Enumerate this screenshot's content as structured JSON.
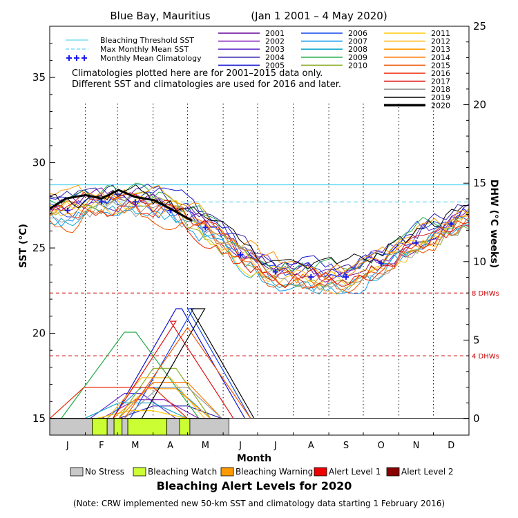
{
  "chart_data": {
    "type": "line",
    "title": "Blue Bay, Mauritius",
    "date_range": "(Jan 1 2001 – 4 May 2020)",
    "xlabel": "Month",
    "ylabel_left": "SST (°C)",
    "ylabel_right": "DHW (°C weeks)",
    "months": [
      "J",
      "F",
      "M",
      "A",
      "M",
      "J",
      "J",
      "A",
      "S",
      "O",
      "N",
      "D"
    ],
    "sst_axis": {
      "min": 15,
      "max": 38,
      "ticks": [
        15,
        20,
        25,
        30,
        35
      ]
    },
    "dhw_axis": {
      "min": 0,
      "max": 25,
      "ticks": [
        0,
        5,
        10,
        15,
        20,
        25
      ]
    },
    "thresholds": {
      "bleaching_threshold_sst": 28.7,
      "max_monthly_mean_sst": 27.7,
      "dhw_lines": [
        {
          "value": 8,
          "label": "8 DHWs"
        },
        {
          "value": 4,
          "label": "4 DHWs"
        }
      ]
    },
    "legend_lines": [
      {
        "label": "Bleaching Threshold SST",
        "color": "#33ccee"
      },
      {
        "label": "Max Monthly Mean SST",
        "color": "#33ccee"
      },
      {
        "label": "Monthly Mean Climatology",
        "color": "#1a1aee"
      }
    ],
    "notes": [
      "Climatologies plotted here are for 2001–2015 data only.",
      "Different SST and climatologies are used for 2016 and later."
    ],
    "series": [
      {
        "name": "2001",
        "color": "#660099"
      },
      {
        "name": "2002",
        "color": "#8822bb"
      },
      {
        "name": "2003",
        "color": "#6633cc"
      },
      {
        "name": "2004",
        "color": "#3322aa"
      },
      {
        "name": "2005",
        "color": "#1111cc"
      },
      {
        "name": "2006",
        "color": "#1144ee"
      },
      {
        "name": "2007",
        "color": "#1199ee"
      },
      {
        "name": "2008",
        "color": "#11aacc"
      },
      {
        "name": "2009",
        "color": "#22aa44"
      },
      {
        "name": "2010",
        "color": "#88aa22"
      },
      {
        "name": "2011",
        "color": "#ffcc00"
      },
      {
        "name": "2012",
        "color": "#ffbb22"
      },
      {
        "name": "2013",
        "color": "#ff9900"
      },
      {
        "name": "2014",
        "color": "#ff7700"
      },
      {
        "name": "2015",
        "color": "#ee5500"
      },
      {
        "name": "2016",
        "color": "#ee2200"
      },
      {
        "name": "2017",
        "color": "#dd1111"
      },
      {
        "name": "2018",
        "color": "#999999"
      },
      {
        "name": "2019",
        "color": "#000000"
      },
      {
        "name": "2020",
        "color": "#000000"
      }
    ],
    "climatology_sst": [
      27.2,
      27.7,
      27.7,
      27.2,
      26.2,
      24.6,
      23.6,
      23.3,
      23.3,
      24.1,
      25.3,
      26.4
    ],
    "year_2020_sst": {
      "x": [
        "2020-01-01",
        "2020-01-15",
        "2020-02-01",
        "2020-02-15",
        "2020-03-01",
        "2020-03-15",
        "2020-04-01",
        "2020-04-15",
        "2020-05-04"
      ],
      "y": [
        27.3,
        27.9,
        28.1,
        27.9,
        28.4,
        28.0,
        27.8,
        27.3,
        26.6
      ]
    },
    "year_2020_dhw": 0,
    "alert_band": {
      "title": "Bleaching Alert Levels for 2020",
      "segments": [
        {
          "from": "2020-01-01",
          "to": "2020-02-07",
          "level": "No Stress"
        },
        {
          "from": "2020-02-07",
          "to": "2020-02-20",
          "level": "Bleaching Watch"
        },
        {
          "from": "2020-02-20",
          "to": "2020-02-26",
          "level": "No Stress"
        },
        {
          "from": "2020-02-26",
          "to": "2020-03-04",
          "level": "Bleaching Watch"
        },
        {
          "from": "2020-03-04",
          "to": "2020-03-09",
          "level": "No Stress"
        },
        {
          "from": "2020-03-09",
          "to": "2020-04-12",
          "level": "Bleaching Watch"
        },
        {
          "from": "2020-04-12",
          "to": "2020-04-23",
          "level": "No Stress"
        },
        {
          "from": "2020-04-23",
          "to": "2020-05-02",
          "level": "Bleaching Watch"
        },
        {
          "from": "2020-05-02",
          "to": "2020-06-05",
          "level": "No Stress"
        }
      ],
      "legend": [
        {
          "label": "No Stress",
          "color": "#c8c8c8"
        },
        {
          "label": "Bleaching Watch",
          "color": "#ccff33"
        },
        {
          "label": "Bleaching Warning",
          "color": "#ff9900"
        },
        {
          "label": "Alert Level 1",
          "color": "#ee0000"
        },
        {
          "label": "Alert Level 2",
          "color": "#880000"
        }
      ]
    }
  },
  "footnote": "(Note: CRW implemented new 50-km SST and climatology data starting 1 February 2016)"
}
